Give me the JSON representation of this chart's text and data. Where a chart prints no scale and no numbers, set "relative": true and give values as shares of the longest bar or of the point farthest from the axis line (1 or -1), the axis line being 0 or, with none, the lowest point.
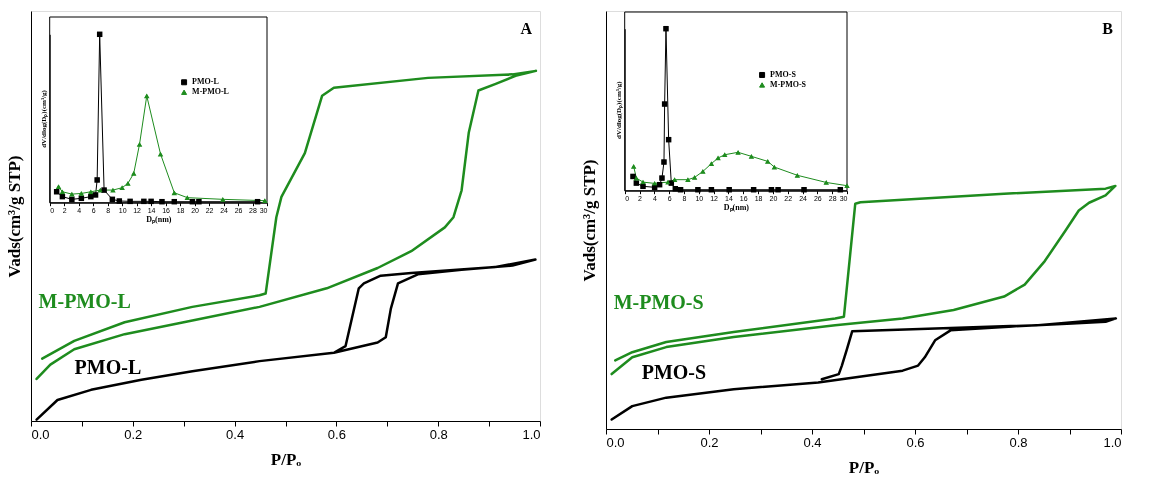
{
  "chart_data": [
    {
      "type": "line",
      "relative": true,
      "xlabel": "P/Pₒ",
      "ylabel": "Vads(cm³/g STP)",
      "annotations": [
        "A"
      ],
      "xlim": [
        0,
        1
      ],
      "xticks": [
        {
          "value": 0,
          "label": "0.0"
        },
        {
          "value": 0.1,
          "label": null
        },
        {
          "value": 0.2,
          "label": "0.2"
        },
        {
          "value": 0.3,
          "label": null
        },
        {
          "value": 0.4,
          "label": "0.4"
        },
        {
          "value": 0.5,
          "label": null
        },
        {
          "value": 0.6,
          "label": "0.6"
        },
        {
          "value": 0.7,
          "label": null
        },
        {
          "value": 0.8,
          "label": "0.8"
        },
        {
          "value": 0.9,
          "label": null
        },
        {
          "value": 1,
          "label": "1.0"
        }
      ],
      "series": [
        {
          "name": "M-PMO-L",
          "color": "#1e8c1e",
          "x": [
            0.011,
            0.038,
            0.085,
            0.184,
            0.317,
            0.449,
            0.581,
            0.681,
            0.747,
            0.813,
            0.83,
            0.846,
            0.86,
            0.879,
            0.913,
            0.952,
            0.992,
            0.946,
            0.78,
            0.595,
            0.572,
            0.538,
            0.492,
            0.482,
            0.461,
            0.449,
            0.317,
            0.184,
            0.085,
            0.022
          ],
          "values": [
            0.12,
            0.161,
            0.205,
            0.248,
            0.287,
            0.326,
            0.379,
            0.437,
            0.485,
            0.553,
            0.582,
            0.659,
            0.823,
            0.944,
            0.963,
            0.986,
            1.0,
            0.99,
            0.98,
            0.952,
            0.929,
            0.765,
            0.64,
            0.582,
            0.364,
            0.359,
            0.326,
            0.282,
            0.229,
            0.178
          ]
        },
        {
          "name": "PMO-L",
          "color": "#000000",
          "x": [
            0.011,
            0.052,
            0.118,
            0.217,
            0.317,
            0.449,
            0.595,
            0.681,
            0.697,
            0.707,
            0.721,
            0.76,
            0.846,
            0.946,
            0.991,
            0.913,
            0.747,
            0.687,
            0.654,
            0.644,
            0.618,
            0.595
          ],
          "values": [
            0.004,
            0.06,
            0.089,
            0.118,
            0.142,
            0.171,
            0.195,
            0.224,
            0.239,
            0.321,
            0.393,
            0.419,
            0.432,
            0.444,
            0.461,
            0.44,
            0.423,
            0.415,
            0.393,
            0.379,
            0.214,
            0.195
          ]
        }
      ]
    },
    {
      "type": "line",
      "relative": true,
      "xlabel": "Dₚ(nm)",
      "ylabel": "dV/dlog(Dₚ)(cm³/g)",
      "legend": "top right",
      "xlim": [
        0,
        30
      ],
      "xticks": [
        0,
        2,
        4,
        6,
        8,
        10,
        12,
        14,
        16,
        18,
        20,
        22,
        24,
        26,
        28,
        30
      ],
      "series": [
        {
          "name": "PMO-L",
          "color": "#000000",
          "marker": "square",
          "x": [
            0.96,
            1.75,
            3.06,
            4.37,
            5.68,
            6.33,
            6.55,
            6.9,
            7.51,
            8.65,
            9.61,
            11.1,
            13.0,
            14.0,
            15.5,
            17.2,
            19.7,
            20.6,
            28.7
          ],
          "values": [
            0.065,
            0.036,
            0.02,
            0.026,
            0.036,
            0.046,
            0.135,
            1.0,
            0.075,
            0.02,
            0.01,
            0.008,
            0.008,
            0.008,
            0.006,
            0.006,
            0.006,
            0.006,
            0.006
          ]
        },
        {
          "name": "M-PMO-L",
          "color": "#1e8c1e",
          "marker": "triangle",
          "x": [
            1.22,
            1.75,
            3.06,
            4.37,
            5.68,
            6.99,
            8.73,
            10.0,
            10.8,
            11.6,
            12.4,
            13.4,
            15.3,
            17.2,
            19.0,
            23.9,
            29.7
          ],
          "values": [
            0.095,
            0.065,
            0.051,
            0.055,
            0.065,
            0.075,
            0.075,
            0.089,
            0.115,
            0.174,
            0.347,
            0.634,
            0.289,
            0.059,
            0.03,
            0.02,
            0.012
          ]
        }
      ]
    },
    {
      "type": "line",
      "relative": true,
      "xlabel": "P/Pₒ",
      "ylabel": "Vads(cm³/g STP)",
      "annotations": [
        "B"
      ],
      "xlim": [
        0,
        1
      ],
      "xticks": [
        {
          "value": 0,
          "label": "0.0"
        },
        {
          "value": 0.1,
          "label": null
        },
        {
          "value": 0.2,
          "label": "0.2"
        },
        {
          "value": 0.3,
          "label": null
        },
        {
          "value": 0.4,
          "label": "0.4"
        },
        {
          "value": 0.5,
          "label": null
        },
        {
          "value": 0.6,
          "label": "0.6"
        },
        {
          "value": 0.7,
          "label": null
        },
        {
          "value": 0.8,
          "label": "0.8"
        },
        {
          "value": 0.9,
          "label": null
        },
        {
          "value": 1,
          "label": "1.0"
        }
      ],
      "series": [
        {
          "name": "M-PMO-S",
          "color": "#1e8c1e",
          "x": [
            0.011,
            0.051,
            0.117,
            0.248,
            0.445,
            0.576,
            0.675,
            0.773,
            0.813,
            0.852,
            0.892,
            0.918,
            0.938,
            0.97,
            0.989,
            0.97,
            0.773,
            0.494,
            0.484,
            0.462,
            0.445,
            0.248,
            0.117,
            0.051,
            0.018
          ],
          "values": [
            0.226,
            0.295,
            0.337,
            0.379,
            0.427,
            0.455,
            0.49,
            0.545,
            0.594,
            0.691,
            0.816,
            0.899,
            0.931,
            0.961,
            1.0,
            0.989,
            0.968,
            0.933,
            0.927,
            0.462,
            0.455,
            0.399,
            0.358,
            0.316,
            0.282
          ]
        },
        {
          "name": "PMO-S",
          "color": "#000000",
          "x": [
            0.011,
            0.051,
            0.117,
            0.248,
            0.412,
            0.576,
            0.606,
            0.619,
            0.639,
            0.669,
            0.773,
            0.905,
            0.97,
            0.99,
            0.839,
            0.669,
            0.478,
            0.468,
            0.458,
            0.452,
            0.419
          ],
          "values": [
            0.039,
            0.094,
            0.129,
            0.164,
            0.191,
            0.24,
            0.261,
            0.295,
            0.365,
            0.406,
            0.42,
            0.434,
            0.441,
            0.455,
            0.427,
            0.416,
            0.402,
            0.33,
            0.261,
            0.226,
            0.205
          ]
        }
      ]
    },
    {
      "type": "line",
      "relative": true,
      "xlabel": "Dₚ(nm)",
      "ylabel": "dV/dlog(Dₚ)(cm³/g)",
      "legend": "top right",
      "xlim": [
        0,
        30
      ],
      "xticks": [
        0,
        2,
        4,
        6,
        8,
        10,
        12,
        14,
        16,
        18,
        20,
        22,
        24,
        26,
        28,
        30
      ],
      "series": [
        {
          "name": "PMO-S",
          "color": "#000000",
          "marker": "square",
          "x": [
            1.12,
            1.57,
            2.47,
            4.04,
            4.71,
            5.03,
            5.3,
            5.39,
            5.57,
            5.93,
            6.29,
            6.83,
            7.54,
            9.88,
            11.7,
            14.1,
            17.4,
            19.8,
            20.7,
            24.2,
            29.1
          ],
          "values": [
            0.088,
            0.047,
            0.027,
            0.021,
            0.037,
            0.078,
            0.177,
            0.535,
            1.0,
            0.315,
            0.047,
            0.012,
            0.006,
            0.006,
            0.006,
            0.006,
            0.006,
            0.006,
            0.006,
            0.006,
            0.006
          ]
        },
        {
          "name": "M-PMO-S",
          "color": "#1e8c1e",
          "marker": "triangle",
          "x": [
            1.21,
            1.57,
            2.47,
            4.04,
            5.84,
            6.74,
            8.53,
            9.43,
            10.55,
            11.7,
            12.6,
            13.5,
            15.3,
            17.1,
            19.3,
            20.2,
            23.3,
            27.2,
            30.0
          ],
          "values": [
            0.15,
            0.078,
            0.053,
            0.045,
            0.053,
            0.068,
            0.068,
            0.082,
            0.119,
            0.167,
            0.202,
            0.222,
            0.237,
            0.212,
            0.181,
            0.146,
            0.095,
            0.051,
            0.031
          ]
        }
      ]
    }
  ]
}
